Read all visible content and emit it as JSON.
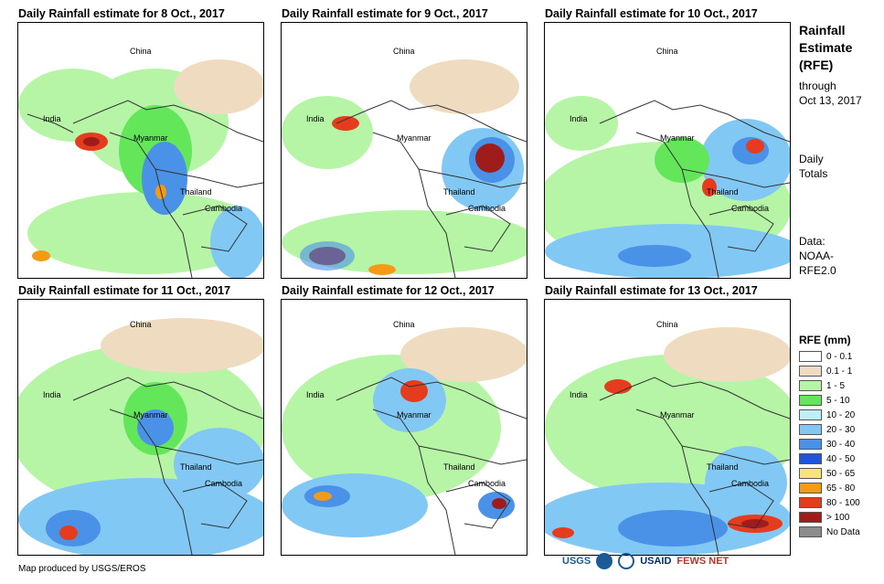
{
  "panels": [
    {
      "title": "Daily Rainfall estimate for 8 Oct., 2017"
    },
    {
      "title": "Daily Rainfall estimate for 9 Oct., 2017"
    },
    {
      "title": "Daily Rainfall estimate for 10 Oct., 2017"
    },
    {
      "title": "Daily Rainfall estimate for 11 Oct., 2017"
    },
    {
      "title": "Daily Rainfall estimate for 12 Oct., 2017"
    },
    {
      "title": "Daily Rainfall estimate for 13 Oct., 2017"
    }
  ],
  "map_labels": {
    "china": "China",
    "india": "India",
    "myanmar": "Myanmar",
    "thailand": "Thailand",
    "cambodia": "Cambodia"
  },
  "sidebar": {
    "title_line1": "Rainfall",
    "title_line2": "Estimate",
    "title_line3": "(RFE)",
    "through_label": "through",
    "through_date": "Oct 13, 2017",
    "daily_line1": "Daily",
    "daily_line2": "Totals",
    "data_line1": "Data:",
    "data_line2": "NOAA-",
    "data_line3": "RFE2.0"
  },
  "legend": {
    "title": "RFE (mm)",
    "items": [
      {
        "label": "0 - 0.1",
        "color": "#ffffff"
      },
      {
        "label": "0.1 - 1",
        "color": "#efdcc0"
      },
      {
        "label": "1 - 5",
        "color": "#b5f5a5"
      },
      {
        "label": "5 - 10",
        "color": "#63e65a"
      },
      {
        "label": "10 - 20",
        "color": "#bdf0f8"
      },
      {
        "label": "20 - 30",
        "color": "#82c8f5"
      },
      {
        "label": "30 - 40",
        "color": "#4a91e8"
      },
      {
        "label": "40 - 50",
        "color": "#1f55d6"
      },
      {
        "label": "50 - 65",
        "color": "#fce27a"
      },
      {
        "label": "65 - 80",
        "color": "#f59a14"
      },
      {
        "label": "80 - 100",
        "color": "#e63c1e"
      },
      {
        "label": "> 100",
        "color": "#9e1c1c"
      },
      {
        "label": "No Data",
        "color": "#8c8c8c"
      }
    ]
  },
  "footer": {
    "credit": "Map produced by USGS/EROS",
    "logo_usgs": "USGS",
    "logo_usaid": "USAID",
    "logo_fewsnet": "FEWS NET"
  }
}
